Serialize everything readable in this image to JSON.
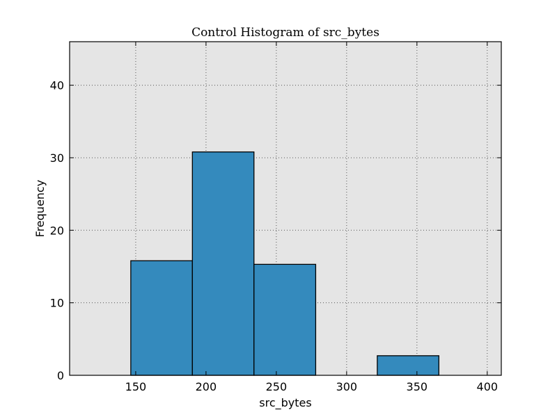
{
  "chart_data": {
    "type": "bar",
    "title": "Control Histogram of src_bytes",
    "xlabel": "src_bytes",
    "ylabel": "Frequency",
    "xlim": [
      103,
      410
    ],
    "ylim": [
      0,
      46
    ],
    "xticks": [
      "150",
      "200",
      "250",
      "300",
      "350",
      "400"
    ],
    "yticks": [
      "0",
      "10",
      "20",
      "30",
      "40"
    ],
    "grid": true,
    "colors": {
      "bar": "#348abd",
      "plot_background": "#e5e5e5",
      "bar_edge": "#000000",
      "grid": "#555555"
    },
    "bins": [
      {
        "start": 146.5,
        "end": 190.3,
        "value": 15.8
      },
      {
        "start": 190.3,
        "end": 234.1,
        "value": 30.8
      },
      {
        "start": 234.1,
        "end": 278.0,
        "value": 15.3
      },
      {
        "start": 278.0,
        "end": 321.8,
        "value": 0
      },
      {
        "start": 321.8,
        "end": 365.6,
        "value": 2.7
      }
    ]
  }
}
